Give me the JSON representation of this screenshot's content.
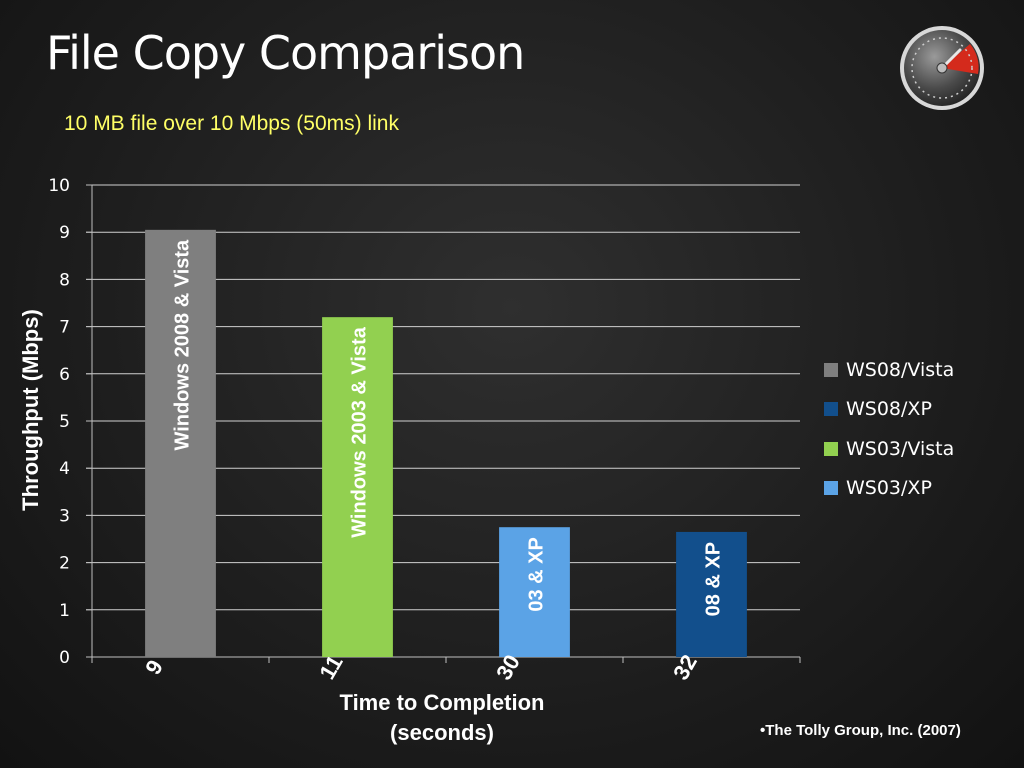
{
  "slide": {
    "title": "File Copy Comparison",
    "subtitle": "10 MB file over 10 Mbps (50ms) link",
    "source_note": "•The Tolly Group, Inc. (2007)",
    "icon": "speedometer-icon"
  },
  "chart_data": {
    "type": "bar",
    "title": "",
    "xlabel_lines": [
      "Time to Completion",
      "(seconds)"
    ],
    "ylabel": "Throughput (Mbps)",
    "ylim": [
      0,
      10
    ],
    "yticks": [
      0,
      1,
      2,
      3,
      4,
      5,
      6,
      7,
      8,
      9,
      10
    ],
    "grid": true,
    "legend_position": "right",
    "categories": [
      "9",
      "11",
      "30",
      "32"
    ],
    "values": [
      9.05,
      7.2,
      2.75,
      2.65
    ],
    "bar_labels": [
      "Windows 2008 & Vista",
      "Windows 2003 & Vista",
      "03 & XP",
      "08 & XP"
    ],
    "colors": [
      "#7f7f7f",
      "#92d050",
      "#5ba3e6",
      "#124f8c"
    ],
    "legend": [
      {
        "name": "WS08/Vista",
        "color": "#7f7f7f"
      },
      {
        "name": "WS08/XP",
        "color": "#124f8c"
      },
      {
        "name": "WS03/Vista",
        "color": "#92d050"
      },
      {
        "name": "WS03/XP",
        "color": "#5ba3e6"
      }
    ]
  }
}
